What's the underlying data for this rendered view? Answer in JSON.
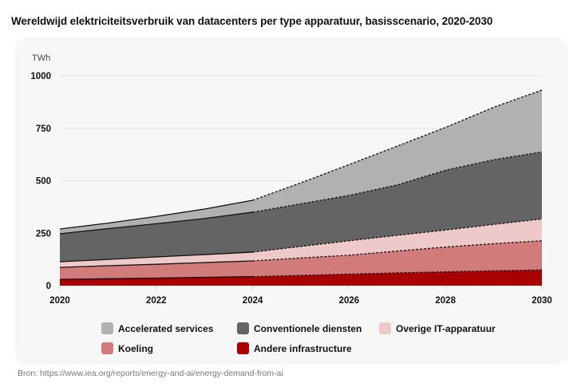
{
  "title": "Wereldwijd elektriciteitsverbruik van datacenters per type apparatuur, basisscenario, 2020-2030",
  "source": "Bron: https://www.iea.org/reports/energy-and-ai/energy-demand-from-ai",
  "chart_data": {
    "type": "area",
    "stacked": true,
    "title": "Wereldwijd elektriciteitsverbruik van datacenters per type apparatuur, basisscenario, 2020-2030",
    "ylabel": "TWh",
    "ylim": [
      0,
      1000
    ],
    "yticks": [
      "0",
      "250",
      "500",
      "750",
      "1000"
    ],
    "ytick_values": [
      0,
      250,
      500,
      750,
      1000
    ],
    "xticks": [
      "2020",
      "2022",
      "2024",
      "2026",
      "2028",
      "2030"
    ],
    "x": [
      2020,
      2021,
      2022,
      2023,
      2024,
      2025,
      2026,
      2027,
      2028,
      2029,
      2030
    ],
    "projection_from": 2024,
    "grid": true,
    "legend_placement": "bottom",
    "series": [
      {
        "name": "Andere infrastructure",
        "color": "#a80000",
        "values": [
          30,
          33,
          36,
          40,
          43,
          49,
          55,
          61,
          66,
          71,
          75
        ]
      },
      {
        "name": "Koeling",
        "color": "#d27b7b",
        "values": [
          57,
          62,
          66,
          70,
          75,
          83,
          90,
          104,
          118,
          129,
          139
        ]
      },
      {
        "name": "Overige IT-apparatuur",
        "color": "#edc9c9",
        "values": [
          27,
          30,
          35,
          38,
          42,
          55,
          69,
          75,
          81,
          92,
          104
        ]
      },
      {
        "name": "Conventionele diensten",
        "color": "#646464",
        "values": [
          133,
          147,
          158,
          172,
          190,
          203,
          216,
          240,
          285,
          308,
          319
        ]
      },
      {
        "name": "Accelerated services",
        "color": "#b1b1b1",
        "values": [
          23,
          26,
          35,
          45,
          57,
          100,
          147,
          185,
          204,
          250,
          295
        ]
      }
    ]
  }
}
